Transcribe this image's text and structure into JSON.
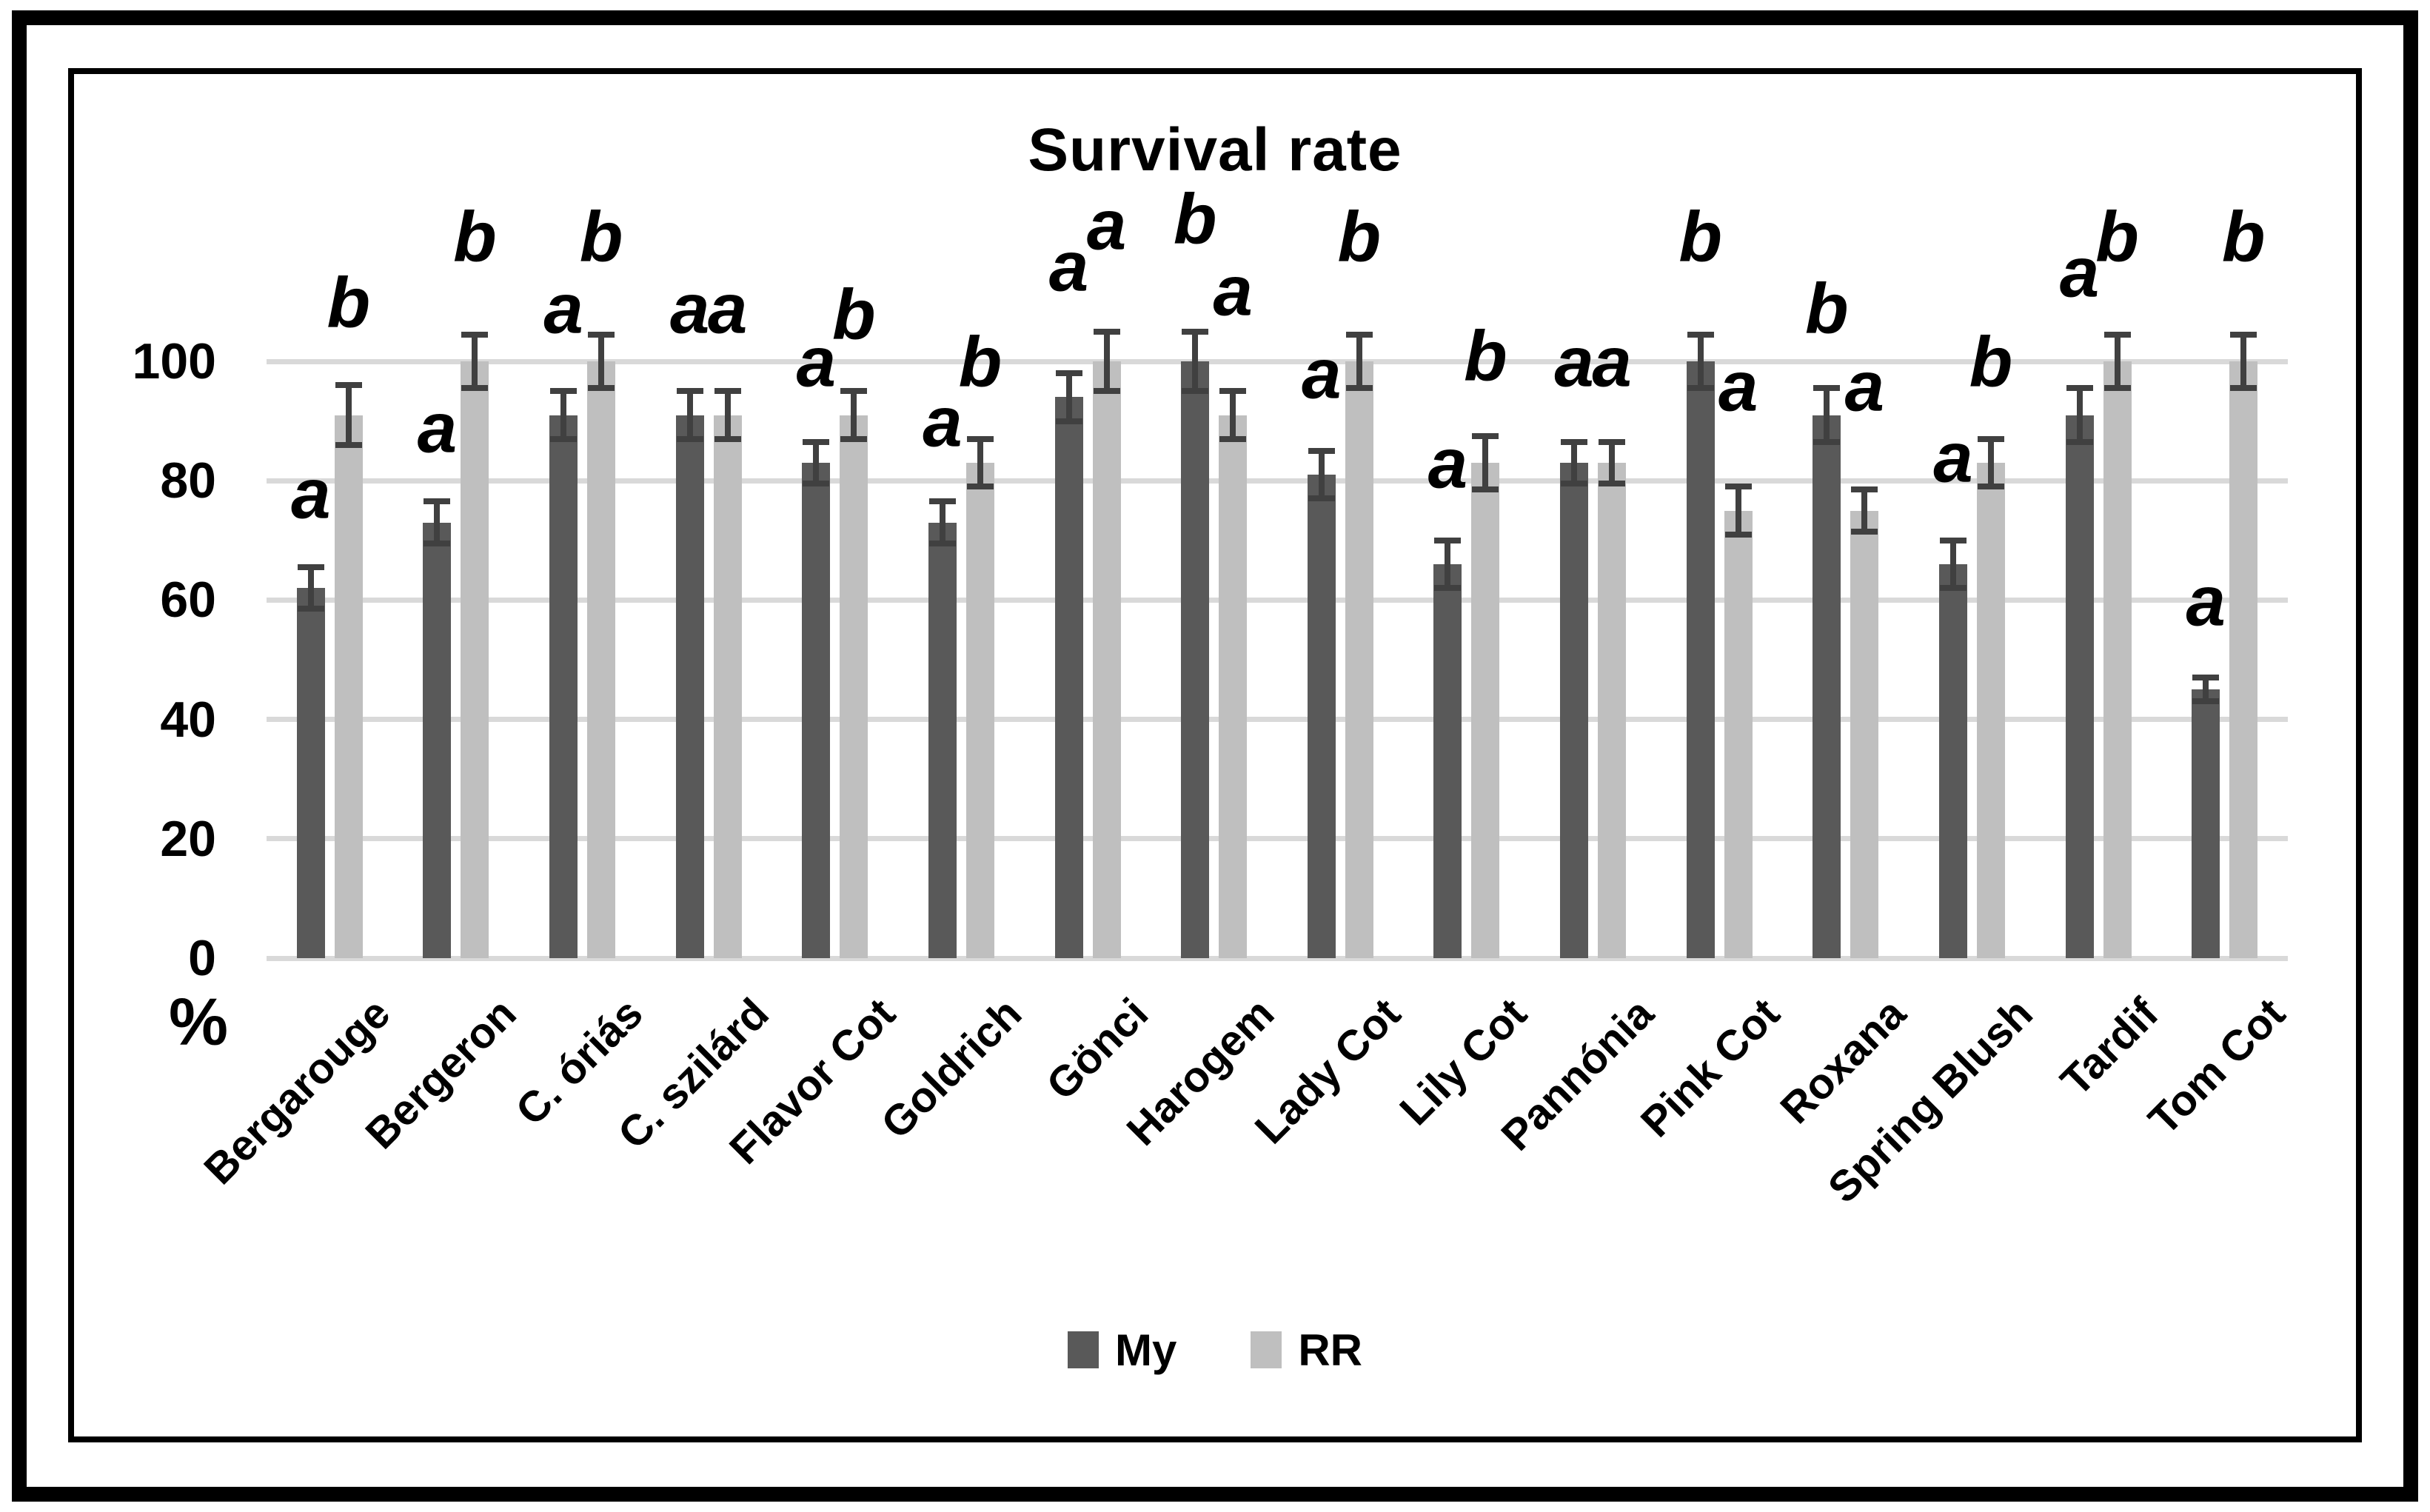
{
  "chart_data": {
    "type": "bar",
    "title": "Survival rate",
    "xlabel": "",
    "ylabel": "%",
    "ylim": [
      0,
      100
    ],
    "yticks": [
      0,
      20,
      40,
      60,
      80,
      100
    ],
    "grid": true,
    "legend_position": "bottom-center",
    "gridline_color": "#d9d9d9",
    "error_bar_color": "#404040",
    "categories": [
      "Bergarouge",
      "Bergeron",
      "C. óriás",
      "C. szilárd",
      "Flavor Cot",
      "Goldrich",
      "Gönci",
      "Harogem",
      "Lady Cot",
      "Lily Cot",
      "Pannónia",
      "Pink Cot",
      "Roxana",
      "Spring Blush",
      "Tardif",
      "Tom Cot"
    ],
    "series": [
      {
        "name": "My",
        "color": "#595959",
        "values": [
          62,
          73,
          91,
          91,
          83,
          73,
          94,
          100,
          81,
          66,
          83,
          100,
          91,
          66,
          91,
          45
        ],
        "errors": [
          3.5,
          3.5,
          4,
          4,
          3.5,
          3.5,
          4,
          5,
          4,
          4,
          3.5,
          4.5,
          4.5,
          4,
          4.5,
          2
        ],
        "letters": [
          "a",
          "a",
          "a",
          "a",
          "a",
          "a",
          "a",
          "b",
          "a",
          "a",
          "a",
          "b",
          "b",
          "a",
          "a",
          "a"
        ],
        "letter_y": [
          73,
          84,
          104,
          104,
          95,
          85,
          111,
          119,
          93,
          78,
          95,
          116,
          104,
          79,
          110,
          55
        ]
      },
      {
        "name": "RR",
        "color": "#bfbfbf",
        "values": [
          91,
          100,
          100,
          91,
          91,
          83,
          100,
          91,
          100,
          83,
          83,
          75,
          75,
          83,
          100,
          100
        ],
        "errors": [
          5,
          4.5,
          4.5,
          4,
          4,
          4,
          5,
          4,
          4.5,
          4.5,
          3.5,
          4,
          3.5,
          4,
          4.5,
          4.5
        ],
        "letters": [
          "b",
          "b",
          "b",
          "a",
          "b",
          "b",
          "a",
          "a",
          "b",
          "b",
          "a",
          "a",
          "a",
          "b",
          "b",
          "b"
        ],
        "letter_y": [
          105,
          116,
          116,
          104,
          103,
          95,
          118,
          107,
          116,
          96,
          95,
          91,
          91,
          95,
          116,
          116
        ]
      }
    ]
  }
}
